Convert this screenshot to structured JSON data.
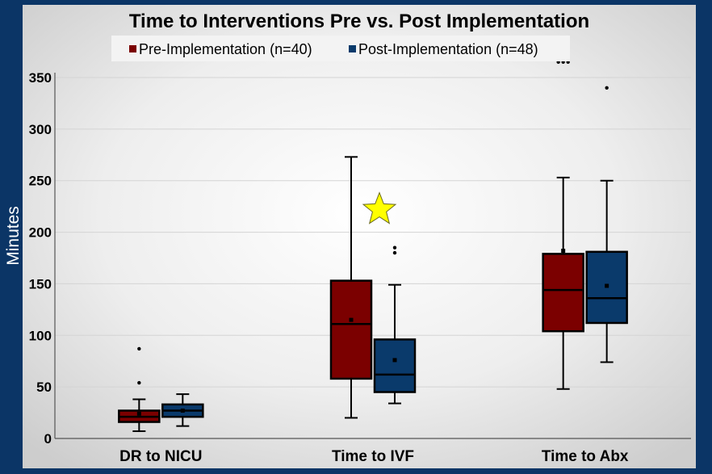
{
  "chart_data": {
    "type": "boxplot",
    "title": "Time to Interventions Pre vs. Post Implementation",
    "ylabel": "Minutes",
    "xlabel": "",
    "ylim": [
      0,
      350
    ],
    "yticks": [
      0,
      50,
      100,
      150,
      200,
      250,
      300,
      350
    ],
    "grid": true,
    "legend_position": "top",
    "categories": [
      "DR to NICU",
      "Time to IVF",
      "Time to Abx"
    ],
    "series": [
      {
        "name": "Pre-Implementation (n=40)",
        "color": "#7b0000",
        "boxes": [
          {
            "min": 7,
            "q1": 16,
            "median": 21,
            "q3": 27,
            "max": 38,
            "mean": 24,
            "outliers": [
              54,
              87
            ]
          },
          {
            "min": 20,
            "q1": 58,
            "median": 111,
            "q3": 153,
            "max": 273,
            "mean": 115,
            "outliers": []
          },
          {
            "min": 48,
            "q1": 104,
            "median": 144,
            "q3": 179,
            "max": 253,
            "mean": 182,
            "outliers": [
              182,
              365,
              365,
              365
            ]
          }
        ]
      },
      {
        "name": "Post-Implementation (n=48)",
        "color": "#0a3a6b",
        "boxes": [
          {
            "min": 12,
            "q1": 21,
            "median": 27,
            "q3": 33,
            "max": 43,
            "mean": 27,
            "outliers": []
          },
          {
            "min": 34,
            "q1": 45,
            "median": 62,
            "q3": 96,
            "max": 149,
            "mean": 76,
            "outliers": [
              180,
              185
            ]
          },
          {
            "min": 74,
            "q1": 112,
            "median": 136,
            "q3": 181,
            "max": 250,
            "mean": 148,
            "outliers": [
              340
            ]
          }
        ]
      }
    ],
    "annotation": {
      "type": "star",
      "category": "Time to IVF",
      "y": 225,
      "color": "#ffff00"
    }
  }
}
